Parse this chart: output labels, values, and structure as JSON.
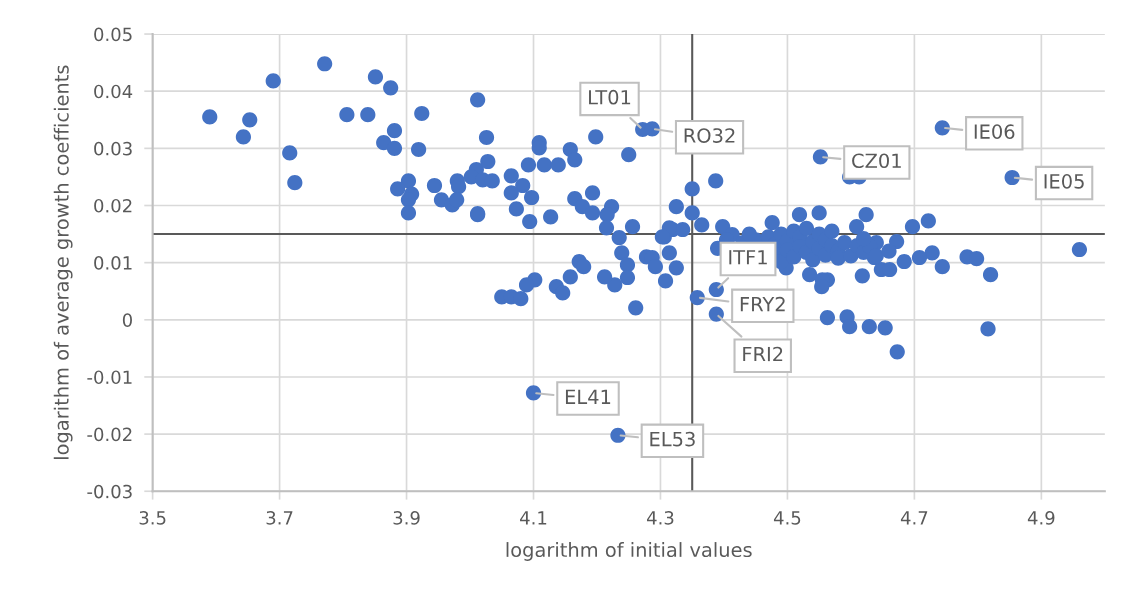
{
  "chart_data": {
    "type": "scatter",
    "xlabel": "logarithm of initial values",
    "ylabel": "logarithm of average growth coefficients",
    "xlim": [
      3.5,
      5.0
    ],
    "xticks": [
      3.5,
      3.7,
      3.9,
      4.1,
      4.3,
      4.5,
      4.7,
      4.9
    ],
    "ylim": [
      -0.03,
      0.05
    ],
    "yticks": [
      -0.03,
      -0.02,
      -0.01,
      0,
      0.01,
      0.02,
      0.03,
      0.04,
      0.05
    ],
    "grid": true,
    "marker": "circle",
    "legend": false,
    "ref_lines": [
      {
        "axis": "x",
        "value": 4.35,
        "color": "#595959"
      },
      {
        "axis": "y",
        "value": 0.015,
        "color": "#595959"
      }
    ],
    "annotations": [
      {
        "text": "LT01",
        "x": 4.272,
        "y": 0.0333
      },
      {
        "text": "RO32",
        "x": 4.287,
        "y": 0.0334
      },
      {
        "text": "CZ01",
        "x": 4.552,
        "y": 0.0285
      },
      {
        "text": "IE06",
        "x": 4.744,
        "y": 0.0336
      },
      {
        "text": "IE05",
        "x": 4.854,
        "y": 0.0249
      },
      {
        "text": "ITF1",
        "x": 4.388,
        "y": 0.0053
      },
      {
        "text": "FRY2",
        "x": 4.358,
        "y": 0.0039
      },
      {
        "text": "FRI2",
        "x": 4.388,
        "y": 0.001
      },
      {
        "text": "EL41",
        "x": 4.1,
        "y": -0.0128
      },
      {
        "text": "EL53",
        "x": 4.233,
        "y": -0.0202
      }
    ],
    "series": [
      {
        "color": "#4472c4",
        "x": [
          3.59,
          3.653,
          3.643,
          3.69,
          3.771,
          3.716,
          3.724,
          3.806,
          3.839,
          3.851,
          3.875,
          3.881,
          3.864,
          3.881,
          3.924,
          3.919,
          4.012,
          3.903,
          3.886,
          3.908,
          3.903,
          3.903,
          3.944,
          3.955,
          3.972,
          3.98,
          3.982,
          3.979,
          4.01,
          4.002,
          4.012,
          4.026,
          4.028,
          4.02,
          4.035,
          4.065,
          4.083,
          4.065,
          4.097,
          4.073,
          4.094,
          4.012,
          4.109,
          4.109,
          4.092,
          4.117,
          4.139,
          4.158,
          4.165,
          4.198,
          4.25,
          4.272,
          4.287,
          4.127,
          4.165,
          4.177,
          4.193,
          4.193,
          4.223,
          4.216,
          4.215,
          4.235,
          4.256,
          4.239,
          4.248,
          4.248,
          4.228,
          4.212,
          4.172,
          4.179,
          4.158,
          4.136,
          4.146,
          4.102,
          4.089,
          4.05,
          4.065,
          4.08,
          4.261,
          4.278,
          4.287,
          4.292,
          4.308,
          4.314,
          4.306,
          4.319,
          4.335,
          4.325,
          4.35,
          4.35,
          4.365,
          4.387,
          4.325,
          4.358,
          4.388,
          4.388,
          4.314,
          4.303,
          4.398,
          4.413,
          4.404,
          4.476,
          4.519,
          4.55,
          4.624,
          4.609,
          4.672,
          4.535,
          4.563,
          4.618,
          4.563,
          4.594,
          4.598,
          4.629,
          4.654,
          4.673,
          4.552,
          4.598,
          4.613,
          4.744,
          4.854,
          4.697,
          4.722,
          4.96,
          4.728,
          4.708,
          4.684,
          4.744,
          4.783,
          4.798,
          4.82,
          4.816,
          4.648,
          4.661,
          4.637,
          4.64,
          4.555,
          4.554,
          4.498,
          4.1,
          4.233,
          4.43,
          4.45,
          4.47,
          4.48,
          4.48,
          4.49,
          4.49,
          4.5,
          4.5,
          4.51,
          4.51,
          4.52,
          4.52,
          4.53,
          4.53,
          4.54,
          4.54,
          4.55,
          4.55,
          4.56,
          4.56,
          4.57,
          4.58,
          4.58,
          4.59,
          4.6,
          4.61,
          4.62,
          4.63,
          4.64,
          4.39,
          4.44,
          4.57,
          4.62,
          4.66
        ],
        "values": [
          0.0355,
          0.035,
          0.032,
          0.0418,
          0.0448,
          0.0292,
          0.024,
          0.0359,
          0.0359,
          0.0425,
          0.0406,
          0.0331,
          0.031,
          0.03,
          0.0361,
          0.0298,
          0.0385,
          0.0243,
          0.0229,
          0.022,
          0.021,
          0.0187,
          0.0235,
          0.021,
          0.0201,
          0.0243,
          0.0233,
          0.021,
          0.0263,
          0.025,
          0.0184,
          0.0319,
          0.0277,
          0.0245,
          0.0243,
          0.0252,
          0.0235,
          0.0222,
          0.0214,
          0.0194,
          0.0172,
          0.0186,
          0.031,
          0.0301,
          0.0271,
          0.0271,
          0.0271,
          0.0298,
          0.028,
          0.032,
          0.0289,
          0.0333,
          0.0334,
          0.018,
          0.0212,
          0.0198,
          0.0187,
          0.0222,
          0.0198,
          0.0184,
          0.0161,
          0.0144,
          0.0163,
          0.0117,
          0.0096,
          0.0074,
          0.0061,
          0.0075,
          0.0102,
          0.0093,
          0.0075,
          0.0058,
          0.0047,
          0.007,
          0.0061,
          0.004,
          0.004,
          0.0037,
          0.0021,
          0.011,
          0.0109,
          0.0093,
          0.0068,
          0.0117,
          0.0145,
          0.0158,
          0.0158,
          0.0198,
          0.0229,
          0.0187,
          0.0166,
          0.0243,
          0.0091,
          0.0039,
          0.0053,
          0.001,
          0.0161,
          0.0145,
          0.0163,
          0.0149,
          0.014,
          0.017,
          0.0184,
          0.0187,
          0.0184,
          0.0163,
          0.0137,
          0.0079,
          0.007,
          0.0077,
          0.0004,
          0.0005,
          -0.0012,
          -0.0012,
          -0.0014,
          -0.0056,
          0.0285,
          0.025,
          0.025,
          0.0336,
          0.0249,
          0.0163,
          0.0173,
          0.0123,
          0.0117,
          0.0109,
          0.0102,
          0.0093,
          0.011,
          0.0107,
          0.0079,
          -0.0016,
          0.0088,
          0.0088,
          0.0109,
          0.0135,
          0.007,
          0.0058,
          0.0091,
          -0.0128,
          -0.0202,
          0.0135,
          0.014,
          0.0145,
          0.0132,
          0.0115,
          0.015,
          0.0102,
          0.0138,
          0.0122,
          0.0155,
          0.011,
          0.0145,
          0.0128,
          0.016,
          0.0118,
          0.0137,
          0.0105,
          0.015,
          0.0125,
          0.0113,
          0.014,
          0.013,
          0.012,
          0.0108,
          0.0135,
          0.0112,
          0.013,
          0.0118,
          0.0128,
          0.0112,
          0.0125,
          0.015,
          0.0155,
          0.0142,
          0.012
        ]
      }
    ]
  }
}
